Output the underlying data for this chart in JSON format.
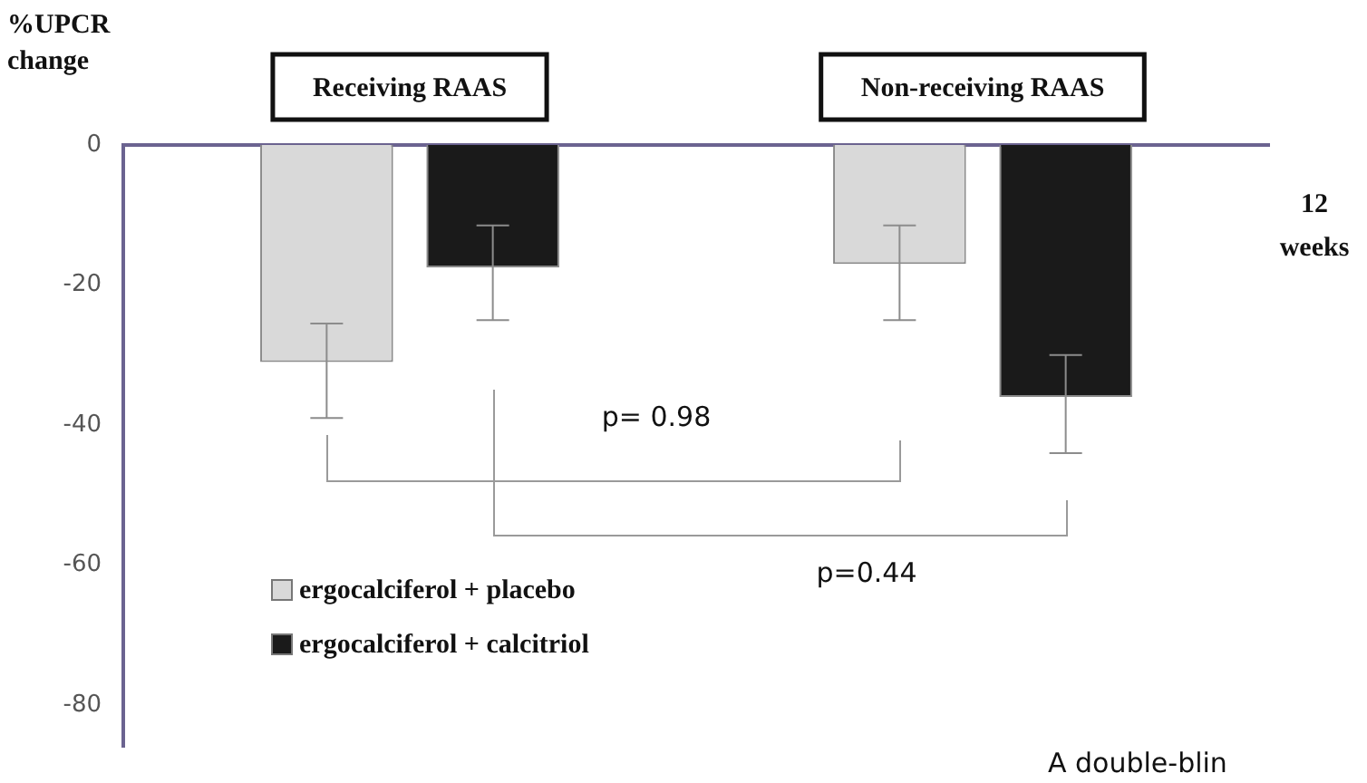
{
  "chart_data": {
    "type": "bar",
    "ylabel": "%UPCR change",
    "categories": [
      "Receiving RAAS",
      "Non-receiving RAAS"
    ],
    "series": [
      {
        "name": "ergocalciferol + placebo",
        "color": "#d9d9d9",
        "values": [
          -31,
          -17
        ],
        "errors": [
          [
            -39,
            -25.5
          ],
          [
            -25,
            -11.5
          ]
        ]
      },
      {
        "name": "ergocalciferol + calcitriol",
        "color": "#1a1a1a",
        "values": [
          -17.5,
          -36
        ],
        "errors": [
          [
            -25,
            -11.5
          ],
          [
            -44,
            -30
          ]
        ]
      }
    ],
    "ylim": [
      -86,
      0
    ],
    "yticks": [
      0,
      -20,
      -40,
      -60,
      -80
    ],
    "grid": false,
    "legend": "bottom left",
    "annotations": [
      "12 weeks",
      "p= 0.98",
      "p=0.44",
      "A double-blin"
    ]
  }
}
